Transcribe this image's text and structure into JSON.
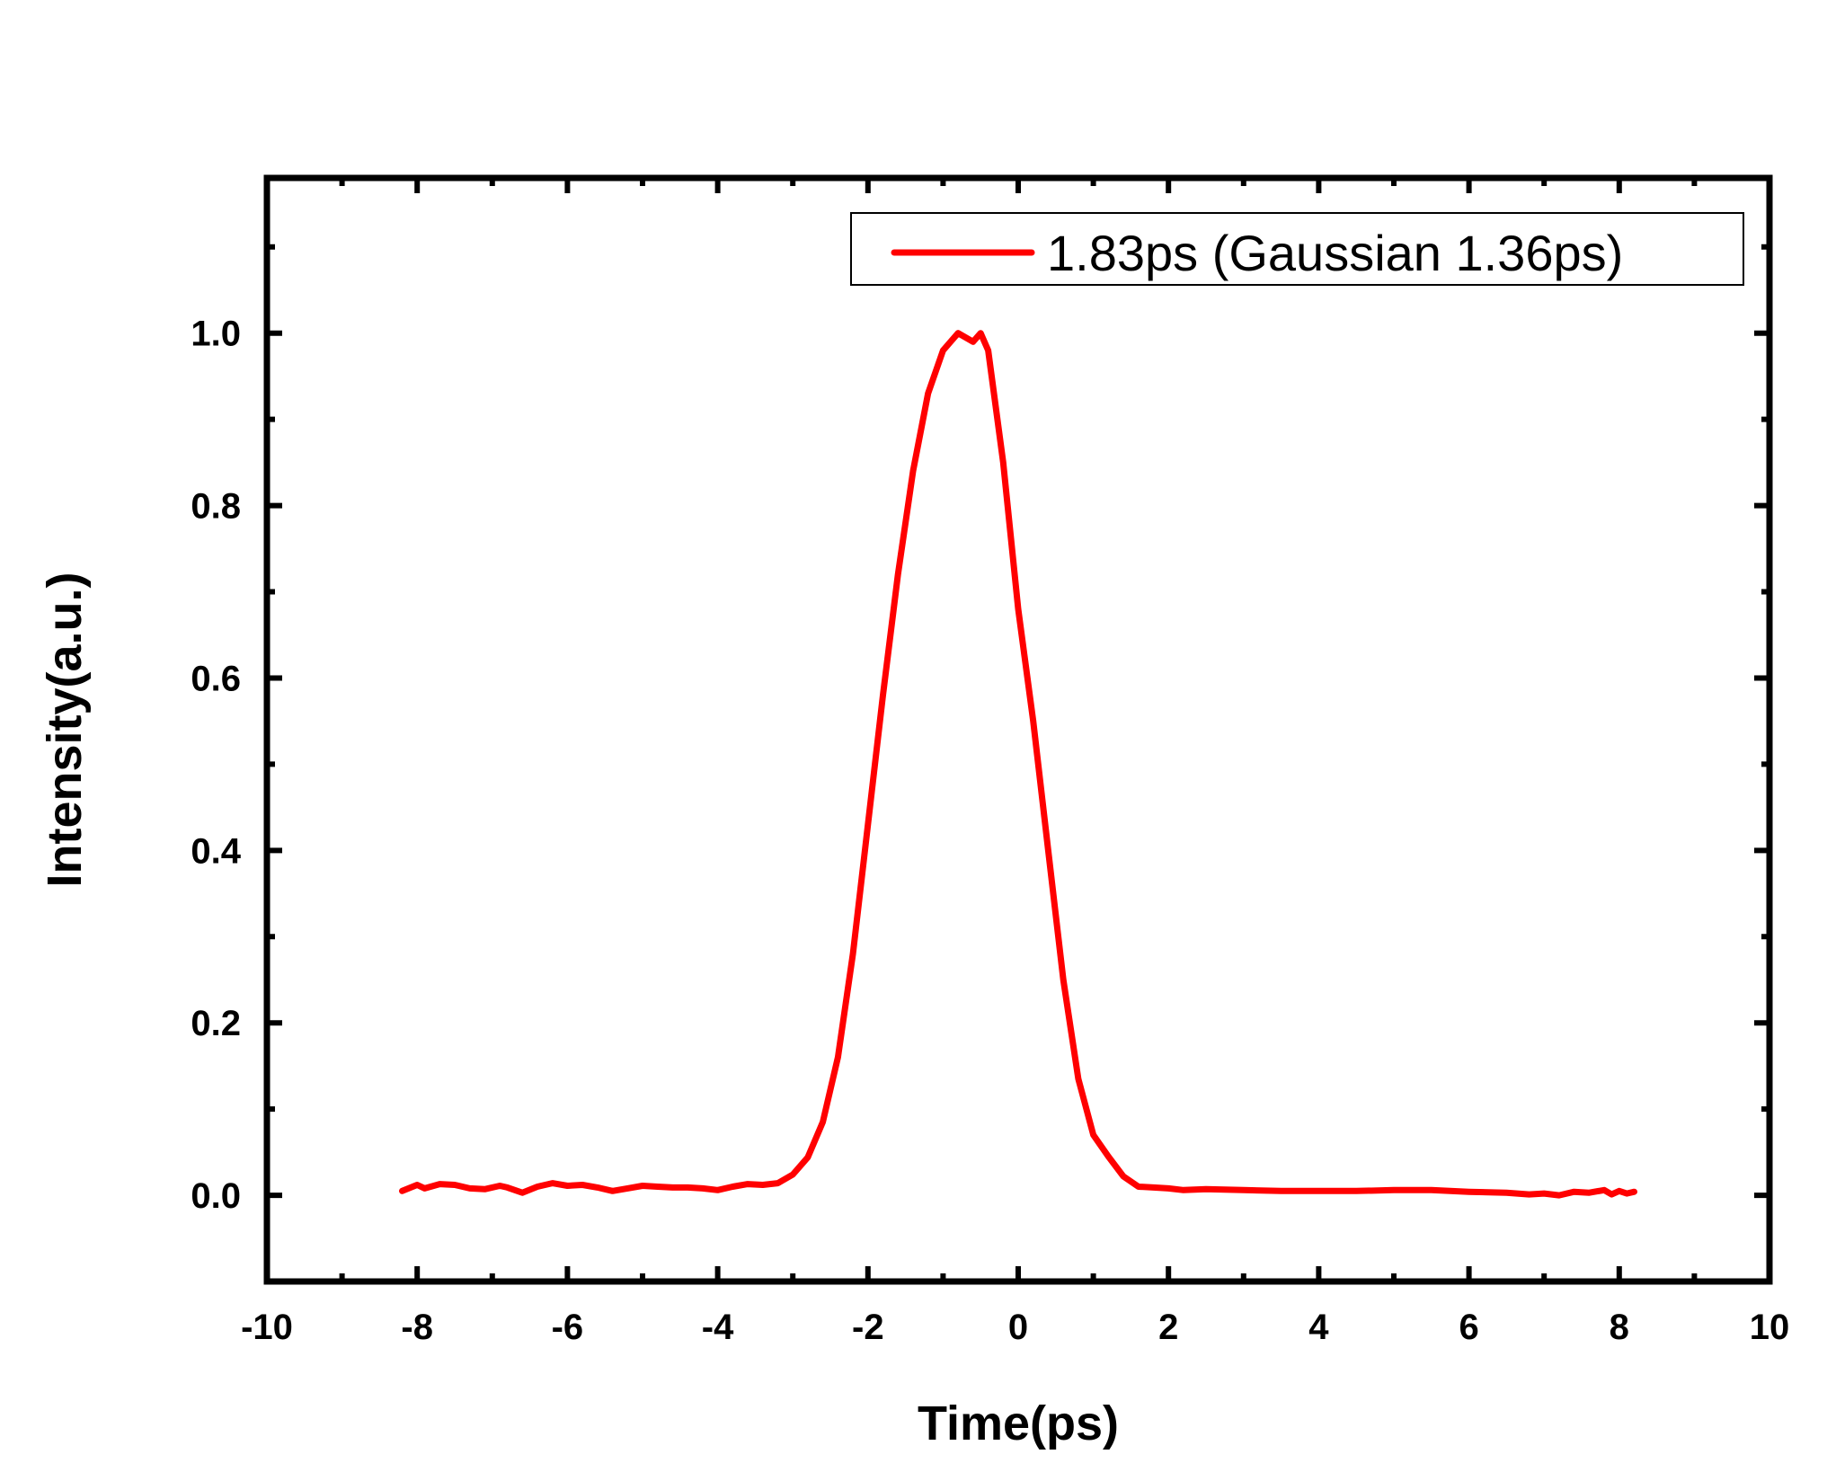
{
  "chart_data": {
    "type": "line",
    "title": "",
    "xlabel": "Time(ps)",
    "ylabel": "Intensity(a.u.)",
    "xlim": [
      -10,
      10
    ],
    "ylim": [
      -0.1,
      1.18
    ],
    "x_ticks": [
      -10,
      -8,
      -6,
      -4,
      -2,
      0,
      2,
      4,
      6,
      8,
      10
    ],
    "x_tick_labels": [
      "-10",
      "-8",
      "-6",
      "-4",
      "-2",
      "0",
      "2",
      "4",
      "6",
      "8",
      "10"
    ],
    "y_ticks": [
      0.0,
      0.2,
      0.4,
      0.6,
      0.8,
      1.0
    ],
    "y_tick_labels": [
      "0.0",
      "0.2",
      "0.4",
      "0.6",
      "0.8",
      "1.0"
    ],
    "grid": false,
    "legend_position": "top-right",
    "series": [
      {
        "name": "1.83ps (Gaussian 1.36ps)",
        "color": "#ff0000",
        "x": [
          -8.2,
          -8.0,
          -7.9,
          -7.7,
          -7.5,
          -7.3,
          -7.1,
          -6.9,
          -6.8,
          -6.6,
          -6.4,
          -6.2,
          -6.0,
          -5.8,
          -5.6,
          -5.4,
          -5.2,
          -5.0,
          -4.8,
          -4.6,
          -4.4,
          -4.2,
          -4.0,
          -3.8,
          -3.6,
          -3.4,
          -3.2,
          -3.0,
          -2.8,
          -2.6,
          -2.4,
          -2.2,
          -2.0,
          -1.8,
          -1.6,
          -1.4,
          -1.2,
          -1.0,
          -0.8,
          -0.6,
          -0.5,
          -0.4,
          -0.2,
          0.0,
          0.2,
          0.4,
          0.6,
          0.8,
          1.0,
          1.2,
          1.4,
          1.6,
          1.8,
          2.0,
          2.2,
          2.5,
          3.0,
          3.5,
          4.0,
          4.5,
          5.0,
          5.5,
          6.0,
          6.5,
          6.8,
          7.0,
          7.2,
          7.4,
          7.6,
          7.8,
          7.9,
          8.0,
          8.1,
          8.2
        ],
        "values": [
          0.005,
          0.012,
          0.008,
          0.013,
          0.012,
          0.008,
          0.007,
          0.011,
          0.009,
          0.003,
          0.01,
          0.014,
          0.011,
          0.012,
          0.009,
          0.005,
          0.008,
          0.011,
          0.01,
          0.009,
          0.009,
          0.008,
          0.006,
          0.01,
          0.013,
          0.012,
          0.014,
          0.024,
          0.044,
          0.085,
          0.16,
          0.28,
          0.43,
          0.58,
          0.72,
          0.84,
          0.93,
          0.98,
          1.0,
          0.99,
          1.0,
          0.98,
          0.85,
          0.68,
          0.55,
          0.4,
          0.25,
          0.135,
          0.07,
          0.045,
          0.022,
          0.01,
          0.009,
          0.008,
          0.006,
          0.007,
          0.006,
          0.005,
          0.005,
          0.005,
          0.006,
          0.006,
          0.004,
          0.003,
          0.001,
          0.002,
          0.0,
          0.004,
          0.003,
          0.006,
          0.001,
          0.005,
          0.002,
          0.004
        ]
      }
    ]
  }
}
